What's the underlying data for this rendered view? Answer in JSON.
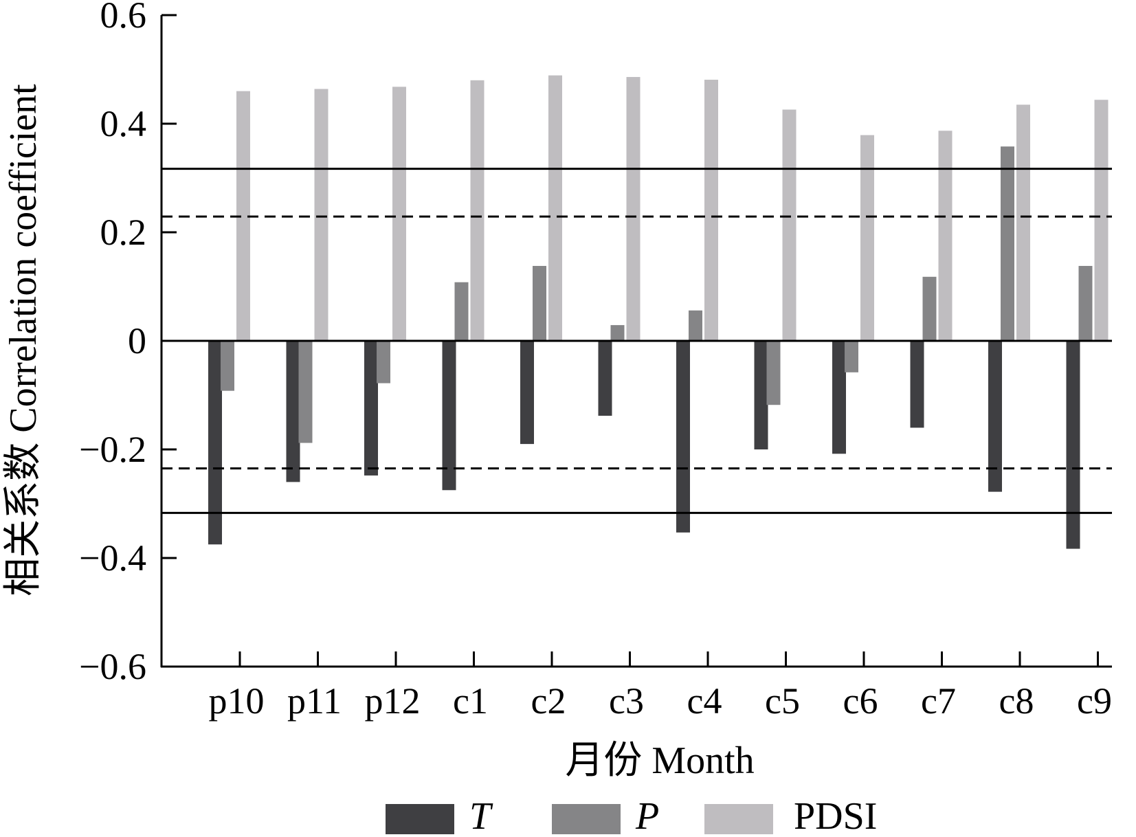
{
  "chart_data": {
    "type": "bar",
    "title": "",
    "xlabel": "月份 Month",
    "ylabel": "相关系数 Correlation coefficient",
    "ylim": [
      -0.6,
      0.6
    ],
    "yticks": [
      0.6,
      0.4,
      0.2,
      0,
      -0.2,
      -0.4,
      -0.6
    ],
    "ytick_labels": [
      "0.6",
      "0.4",
      "0.2",
      "0",
      "−0.2",
      "−0.4",
      "−0.6"
    ],
    "categories": [
      "p10",
      "p11",
      "p12",
      "c1",
      "c2",
      "c3",
      "c4",
      "c5",
      "c6",
      "c7",
      "c8",
      "c9"
    ],
    "series": [
      {
        "name": "T",
        "color": "#3f3f42",
        "italic": true,
        "values": [
          -0.375,
          -0.26,
          -0.248,
          -0.275,
          -0.19,
          -0.138,
          -0.353,
          -0.2,
          -0.208,
          -0.16,
          -0.278,
          -0.383
        ]
      },
      {
        "name": "P",
        "color": "#858587",
        "italic": true,
        "values": [
          -0.092,
          -0.188,
          -0.078,
          0.108,
          0.138,
          0.029,
          0.056,
          -0.118,
          -0.058,
          0.118,
          0.358,
          0.138
        ]
      },
      {
        "name": "PDSI",
        "color": "#bfbdc0",
        "italic": false,
        "values": [
          0.46,
          0.464,
          0.468,
          0.48,
          0.489,
          0.486,
          0.481,
          0.426,
          0.379,
          0.387,
          0.435,
          0.444
        ]
      }
    ],
    "significance_lines": [
      {
        "value": 0.317,
        "style": "solid"
      },
      {
        "value": 0.229,
        "style": "dashed"
      },
      {
        "value": -0.235,
        "style": "dashed"
      },
      {
        "value": -0.317,
        "style": "solid"
      }
    ],
    "zero_line": true,
    "grid": false,
    "legend_position": "bottom"
  }
}
